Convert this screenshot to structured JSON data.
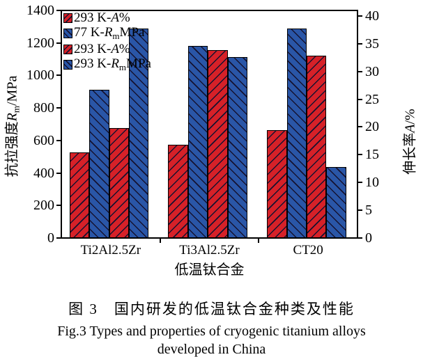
{
  "colors": {
    "red": "#d62128",
    "blue": "#2a56a7",
    "hatch_line": "#151230",
    "axis": "#000000"
  },
  "axis_left": {
    "text": "抗拉强度",
    "sym": "R",
    "sub": "m",
    "unit": "/MPa"
  },
  "axis_right": {
    "text": "伸长率",
    "sym": "A",
    "sub": "",
    "unit": "/%"
  },
  "caption": {
    "cn": "图 3　国内研发的低温钛合金种类及性能",
    "en_line1": "Fig.3 Types and properties of cryogenic titanium alloys",
    "en_line2": "developed in China"
  },
  "chart_data": {
    "type": "bar",
    "title": "",
    "xlabel": "低温钛合金",
    "ylabel_left": "抗拉强度Rm/MPa",
    "ylabel_right": "伸长率A/%",
    "categories": [
      "Ti2Al2.5Zr",
      "Ti3Al2.5Zr",
      "CT20"
    ],
    "ylim_left": [
      0,
      1400
    ],
    "ylim_right": [
      0,
      40
    ],
    "yticks_left": [
      0,
      200,
      400,
      600,
      800,
      1000,
      1200,
      1400
    ],
    "yticks_right": [
      0,
      5,
      10,
      15,
      20,
      25,
      30,
      35,
      40
    ],
    "grid": false,
    "legend_position": "upper-left-inside",
    "series": [
      {
        "name": "293 K-A",
        "prefix": "293 K-",
        "sym": "A",
        "sub": "",
        "swatch": "red",
        "hatch": "/",
        "axis": "right",
        "unit": "%",
        "values": [
          15.4,
          16.8,
          19.4
        ]
      },
      {
        "name": "77 K-Rm",
        "prefix": "77 K-",
        "sym": "R",
        "sub": "m",
        "swatch": "blue",
        "hatch": "\\",
        "axis": "left",
        "unit": "MPa",
        "values": [
          910,
          1180,
          1290
        ]
      },
      {
        "name": "293 K-A",
        "prefix": "293 K-",
        "sym": "A",
        "sub": "",
        "swatch": "red",
        "hatch": "/",
        "axis": "right",
        "unit": "%",
        "values": [
          19.8,
          33.8,
          32.8
        ]
      },
      {
        "name": "293 K-Rm",
        "prefix": "293 K-",
        "sym": "R",
        "sub": "m",
        "swatch": "blue",
        "hatch": "\\",
        "axis": "left",
        "unit": "MPa",
        "values": [
          1290,
          1115,
          435
        ]
      }
    ]
  }
}
